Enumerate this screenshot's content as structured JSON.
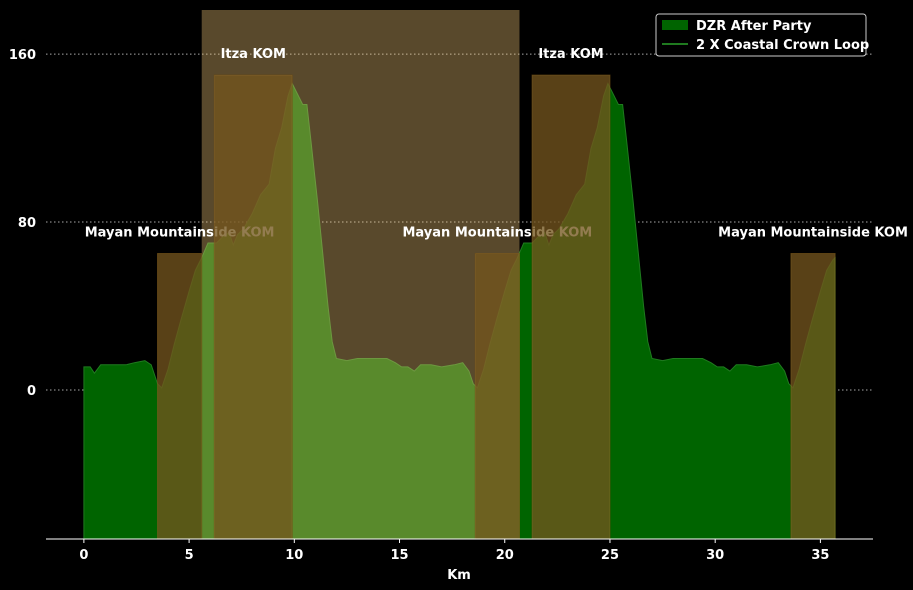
{
  "chart_data": {
    "type": "area",
    "xlabel": "Km",
    "ylabel": "",
    "xlim": [
      -1.8,
      37.5
    ],
    "ylim": [
      -71,
      181
    ],
    "x_ticks": [
      0,
      5,
      10,
      15,
      20,
      25,
      30,
      35
    ],
    "y_ticks": [
      0,
      80,
      160
    ],
    "grid": "y-dotted",
    "legend_position": "top-right",
    "colors": {
      "background": "#000000",
      "fill": "#006400",
      "line": "#1f7a1f",
      "band": "#ffd27f",
      "band_box": "#4a3000",
      "text": "#ffffff",
      "grid": "#bbbbbb"
    },
    "series": [
      {
        "name": "DZR After Party",
        "kind": "area",
        "baseline": -71,
        "points": [
          [
            0.0,
            11
          ],
          [
            0.3,
            11
          ],
          [
            0.5,
            8
          ],
          [
            0.8,
            12
          ],
          [
            1.2,
            12
          ],
          [
            2.0,
            12
          ],
          [
            2.4,
            13
          ],
          [
            2.9,
            14
          ],
          [
            3.2,
            12
          ],
          [
            3.5,
            3
          ],
          [
            3.7,
            1
          ],
          [
            4.0,
            10
          ],
          [
            4.3,
            22
          ],
          [
            4.6,
            33
          ],
          [
            5.0,
            47
          ],
          [
            5.3,
            57
          ],
          [
            5.6,
            63
          ],
          [
            5.9,
            70
          ],
          [
            6.3,
            70
          ],
          [
            6.6,
            73
          ],
          [
            6.9,
            75
          ],
          [
            7.1,
            69
          ],
          [
            7.3,
            74
          ],
          [
            7.6,
            77
          ],
          [
            8.0,
            84
          ],
          [
            8.4,
            93
          ],
          [
            8.8,
            98
          ],
          [
            9.1,
            115
          ],
          [
            9.4,
            125
          ],
          [
            9.7,
            140
          ],
          [
            9.9,
            146
          ],
          [
            10.1,
            142
          ],
          [
            10.4,
            136
          ],
          [
            10.6,
            136
          ],
          [
            10.8,
            118
          ],
          [
            11.1,
            90
          ],
          [
            11.4,
            60
          ],
          [
            11.6,
            40
          ],
          [
            11.8,
            23
          ],
          [
            12.0,
            15
          ],
          [
            12.5,
            14
          ],
          [
            13.0,
            15
          ],
          [
            14.0,
            15
          ],
          [
            14.4,
            15
          ],
          [
            14.8,
            13
          ],
          [
            15.1,
            11
          ],
          [
            15.4,
            11
          ],
          [
            15.7,
            9
          ],
          [
            16.0,
            12
          ],
          [
            16.5,
            12
          ],
          [
            17.0,
            11
          ],
          [
            17.6,
            12
          ],
          [
            18.0,
            13
          ],
          [
            18.3,
            9
          ],
          [
            18.5,
            3
          ],
          [
            18.7,
            1
          ],
          [
            19.0,
            10
          ],
          [
            19.3,
            22
          ],
          [
            19.6,
            33
          ],
          [
            20.0,
            47
          ],
          [
            20.3,
            57
          ],
          [
            20.6,
            63
          ],
          [
            20.9,
            70
          ],
          [
            21.3,
            70
          ],
          [
            21.6,
            73
          ],
          [
            21.9,
            75
          ],
          [
            22.1,
            69
          ],
          [
            22.3,
            74
          ],
          [
            22.6,
            77
          ],
          [
            23.0,
            84
          ],
          [
            23.4,
            93
          ],
          [
            23.8,
            98
          ],
          [
            24.1,
            115
          ],
          [
            24.4,
            125
          ],
          [
            24.7,
            140
          ],
          [
            24.9,
            146
          ],
          [
            25.1,
            142
          ],
          [
            25.4,
            136
          ],
          [
            25.6,
            136
          ],
          [
            25.8,
            118
          ],
          [
            26.1,
            90
          ],
          [
            26.4,
            60
          ],
          [
            26.6,
            40
          ],
          [
            26.8,
            23
          ],
          [
            27.0,
            15
          ],
          [
            27.5,
            14
          ],
          [
            28.0,
            15
          ],
          [
            29.0,
            15
          ],
          [
            29.4,
            15
          ],
          [
            29.8,
            13
          ],
          [
            30.1,
            11
          ],
          [
            30.4,
            11
          ],
          [
            30.7,
            9
          ],
          [
            31.0,
            12
          ],
          [
            31.5,
            12
          ],
          [
            32.0,
            11
          ],
          [
            32.6,
            12
          ],
          [
            33.0,
            13
          ],
          [
            33.3,
            9
          ],
          [
            33.5,
            3
          ],
          [
            33.7,
            1
          ],
          [
            34.0,
            10
          ],
          [
            34.3,
            22
          ],
          [
            34.6,
            33
          ],
          [
            35.0,
            47
          ],
          [
            35.3,
            57
          ],
          [
            35.6,
            62
          ],
          [
            35.7,
            63
          ]
        ]
      },
      {
        "name": "2 X Coastal Crown Loop",
        "kind": "line",
        "points": []
      }
    ],
    "segments": [
      {
        "name": "Mayan Mountainside KOM",
        "x_start": 3.5,
        "x_end": 5.6,
        "top": 65
      },
      {
        "name": "Itza KOM",
        "x_start": 6.2,
        "x_end": 9.9,
        "top": 150
      },
      {
        "name": "Mayan Mountainside KOM",
        "x_start": 18.6,
        "x_end": 20.7,
        "top": 65
      },
      {
        "name": "Itza KOM",
        "x_start": 21.3,
        "x_end": 25.0,
        "top": 150
      },
      {
        "name": "Mayan Mountainside KOM",
        "x_start": 33.6,
        "x_end": 35.7,
        "top": 65
      }
    ],
    "band": {
      "x_start": 5.6,
      "x_end": 20.7
    }
  }
}
